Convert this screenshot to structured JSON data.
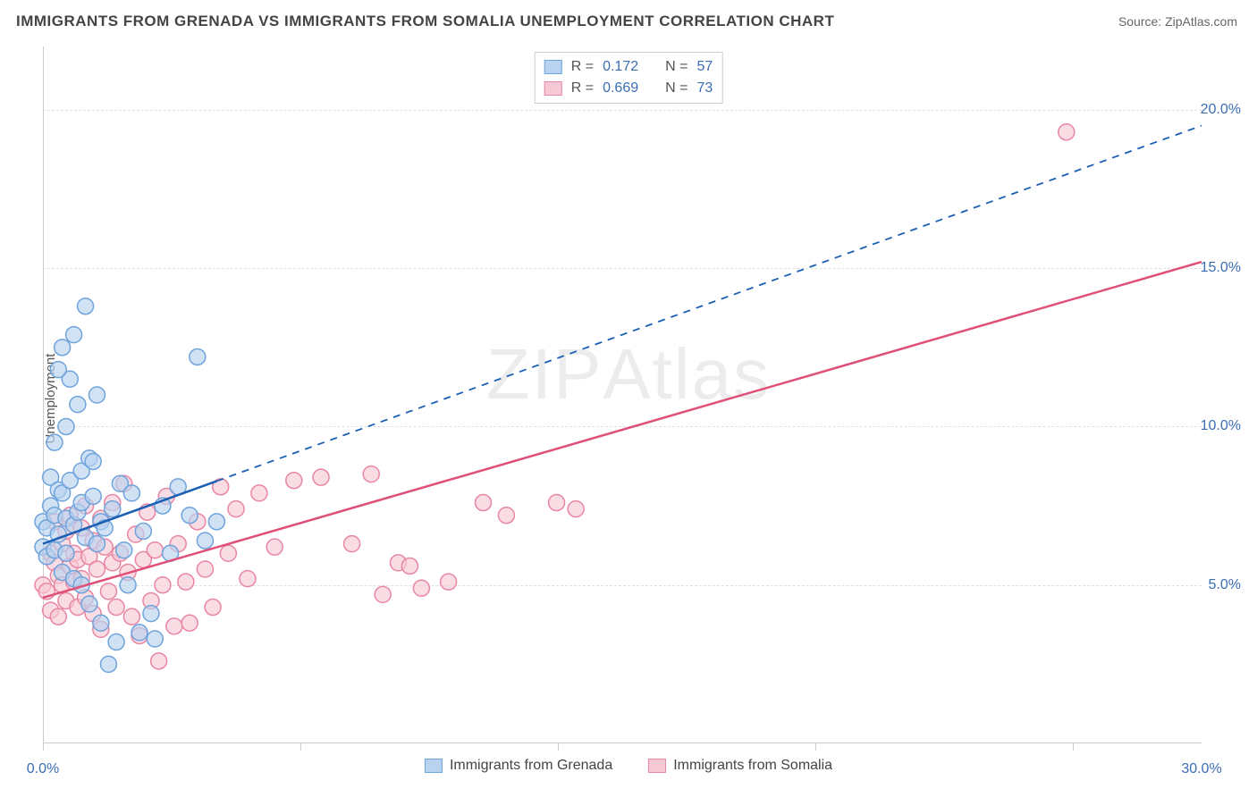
{
  "title": "IMMIGRANTS FROM GRENADA VS IMMIGRANTS FROM SOMALIA UNEMPLOYMENT CORRELATION CHART",
  "source_label": "Source: ",
  "source_name": "ZipAtlas.com",
  "ylabel": "Unemployment",
  "watermark_part1": "ZIP",
  "watermark_part2": "Atlas",
  "chart": {
    "type": "scatter",
    "xlim": [
      0,
      30
    ],
    "ylim": [
      0,
      22
    ],
    "xtick_values": [
      0,
      6.67,
      13.33,
      20,
      26.67
    ],
    "xtick_labels_shown": {
      "0": "0.0%",
      "30": "30.0%"
    },
    "ytick_values": [
      5,
      10,
      15,
      20
    ],
    "ytick_labels": [
      "5.0%",
      "10.0%",
      "15.0%",
      "20.0%"
    ],
    "background_color": "#ffffff",
    "grid_color": "#e0e0e0",
    "grid_style": "dashed",
    "axis_color": "#cccccc",
    "tick_label_color": "#3b6db3",
    "tick_fontsize": 16,
    "title_fontsize": 17,
    "label_fontsize": 15,
    "marker_radius": 9,
    "marker_stroke_width": 1.5,
    "trend_line_width": 2.5
  },
  "series": [
    {
      "name": "Immigrants from Grenada",
      "legend_label": "Immigrants from Grenada",
      "R_label": "R  =",
      "R_value": "0.172",
      "N_label": "N  =",
      "N_value": "57",
      "fill_color": "#b9d2ef",
      "stroke_color": "#6fa3db",
      "line_color": "#1b5fb5",
      "line_style": "dashed",
      "line_solid_until_x": 4.5,
      "trend": {
        "x1": 0,
        "y1": 6.3,
        "x2": 30,
        "y2": 19.5
      },
      "points": [
        [
          0.0,
          6.2
        ],
        [
          0.0,
          7.0
        ],
        [
          0.1,
          6.8
        ],
        [
          0.1,
          5.9
        ],
        [
          0.2,
          7.5
        ],
        [
          0.2,
          8.4
        ],
        [
          0.3,
          6.1
        ],
        [
          0.3,
          7.2
        ],
        [
          0.3,
          9.5
        ],
        [
          0.4,
          8.0
        ],
        [
          0.4,
          6.6
        ],
        [
          0.5,
          5.4
        ],
        [
          0.5,
          7.9
        ],
        [
          0.5,
          12.5
        ],
        [
          0.6,
          10.0
        ],
        [
          0.6,
          7.1
        ],
        [
          0.6,
          6.0
        ],
        [
          0.7,
          11.5
        ],
        [
          0.7,
          8.3
        ],
        [
          0.8,
          12.9
        ],
        [
          0.8,
          6.9
        ],
        [
          0.8,
          5.2
        ],
        [
          0.9,
          7.3
        ],
        [
          0.9,
          10.7
        ],
        [
          1.0,
          7.6
        ],
        [
          1.0,
          5.0
        ],
        [
          1.0,
          8.6
        ],
        [
          1.1,
          13.8
        ],
        [
          1.1,
          6.5
        ],
        [
          1.2,
          9.0
        ],
        [
          1.2,
          4.4
        ],
        [
          1.3,
          7.8
        ],
        [
          1.3,
          8.9
        ],
        [
          1.4,
          6.3
        ],
        [
          1.4,
          11.0
        ],
        [
          1.5,
          7.0
        ],
        [
          1.5,
          3.8
        ],
        [
          1.6,
          6.8
        ],
        [
          1.7,
          2.5
        ],
        [
          1.8,
          7.4
        ],
        [
          1.9,
          3.2
        ],
        [
          2.0,
          8.2
        ],
        [
          2.1,
          6.1
        ],
        [
          2.2,
          5.0
        ],
        [
          2.3,
          7.9
        ],
        [
          2.5,
          3.5
        ],
        [
          2.6,
          6.7
        ],
        [
          2.8,
          4.1
        ],
        [
          2.9,
          3.3
        ],
        [
          3.1,
          7.5
        ],
        [
          3.3,
          6.0
        ],
        [
          3.5,
          8.1
        ],
        [
          3.8,
          7.2
        ],
        [
          4.0,
          12.2
        ],
        [
          4.2,
          6.4
        ],
        [
          4.5,
          7.0
        ],
        [
          0.4,
          11.8
        ]
      ]
    },
    {
      "name": "Immigrants from Somalia",
      "legend_label": "Immigrants from Somalia",
      "R_label": "R  =",
      "R_value": "0.669",
      "N_label": "N  =",
      "N_value": "73",
      "fill_color": "#f7c9d6",
      "stroke_color": "#e886a3",
      "line_color": "#e04f78",
      "line_style": "solid",
      "trend": {
        "x1": 0,
        "y1": 4.6,
        "x2": 30,
        "y2": 15.2
      },
      "points": [
        [
          0.0,
          5.0
        ],
        [
          0.1,
          4.8
        ],
        [
          0.2,
          6.0
        ],
        [
          0.2,
          4.2
        ],
        [
          0.3,
          5.7
        ],
        [
          0.3,
          7.0
        ],
        [
          0.4,
          5.3
        ],
        [
          0.4,
          4.0
        ],
        [
          0.5,
          6.3
        ],
        [
          0.5,
          5.0
        ],
        [
          0.6,
          6.7
        ],
        [
          0.6,
          4.5
        ],
        [
          0.7,
          5.6
        ],
        [
          0.7,
          7.2
        ],
        [
          0.8,
          5.1
        ],
        [
          0.8,
          6.0
        ],
        [
          0.9,
          4.3
        ],
        [
          0.9,
          5.8
        ],
        [
          1.0,
          6.8
        ],
        [
          1.0,
          5.2
        ],
        [
          1.1,
          7.5
        ],
        [
          1.1,
          4.6
        ],
        [
          1.2,
          5.9
        ],
        [
          1.3,
          4.1
        ],
        [
          1.3,
          6.4
        ],
        [
          1.4,
          5.5
        ],
        [
          1.5,
          7.1
        ],
        [
          1.5,
          3.6
        ],
        [
          1.6,
          6.2
        ],
        [
          1.7,
          4.8
        ],
        [
          1.8,
          5.7
        ],
        [
          1.8,
          7.6
        ],
        [
          1.9,
          4.3
        ],
        [
          2.0,
          6.0
        ],
        [
          2.1,
          8.2
        ],
        [
          2.2,
          5.4
        ],
        [
          2.3,
          4.0
        ],
        [
          2.4,
          6.6
        ],
        [
          2.5,
          3.4
        ],
        [
          2.6,
          5.8
        ],
        [
          2.7,
          7.3
        ],
        [
          2.8,
          4.5
        ],
        [
          2.9,
          6.1
        ],
        [
          3.0,
          2.6
        ],
        [
          3.1,
          5.0
        ],
        [
          3.2,
          7.8
        ],
        [
          3.4,
          3.7
        ],
        [
          3.5,
          6.3
        ],
        [
          3.7,
          5.1
        ],
        [
          3.8,
          3.8
        ],
        [
          4.0,
          7.0
        ],
        [
          4.2,
          5.5
        ],
        [
          4.4,
          4.3
        ],
        [
          4.6,
          8.1
        ],
        [
          4.8,
          6.0
        ],
        [
          5.0,
          7.4
        ],
        [
          5.3,
          5.2
        ],
        [
          5.6,
          7.9
        ],
        [
          6.0,
          6.2
        ],
        [
          6.5,
          8.3
        ],
        [
          7.2,
          8.4
        ],
        [
          8.0,
          6.3
        ],
        [
          8.5,
          8.5
        ],
        [
          9.2,
          5.7
        ],
        [
          9.8,
          4.9
        ],
        [
          10.5,
          5.1
        ],
        [
          11.4,
          7.6
        ],
        [
          12.0,
          7.2
        ],
        [
          13.3,
          7.6
        ],
        [
          13.8,
          7.4
        ],
        [
          9.5,
          5.6
        ],
        [
          8.8,
          4.7
        ],
        [
          26.5,
          19.3
        ]
      ]
    }
  ],
  "legend_bottom": [
    {
      "label": "Immigrants from Grenada",
      "series": 0
    },
    {
      "label": "Immigrants from Somalia",
      "series": 1
    }
  ]
}
